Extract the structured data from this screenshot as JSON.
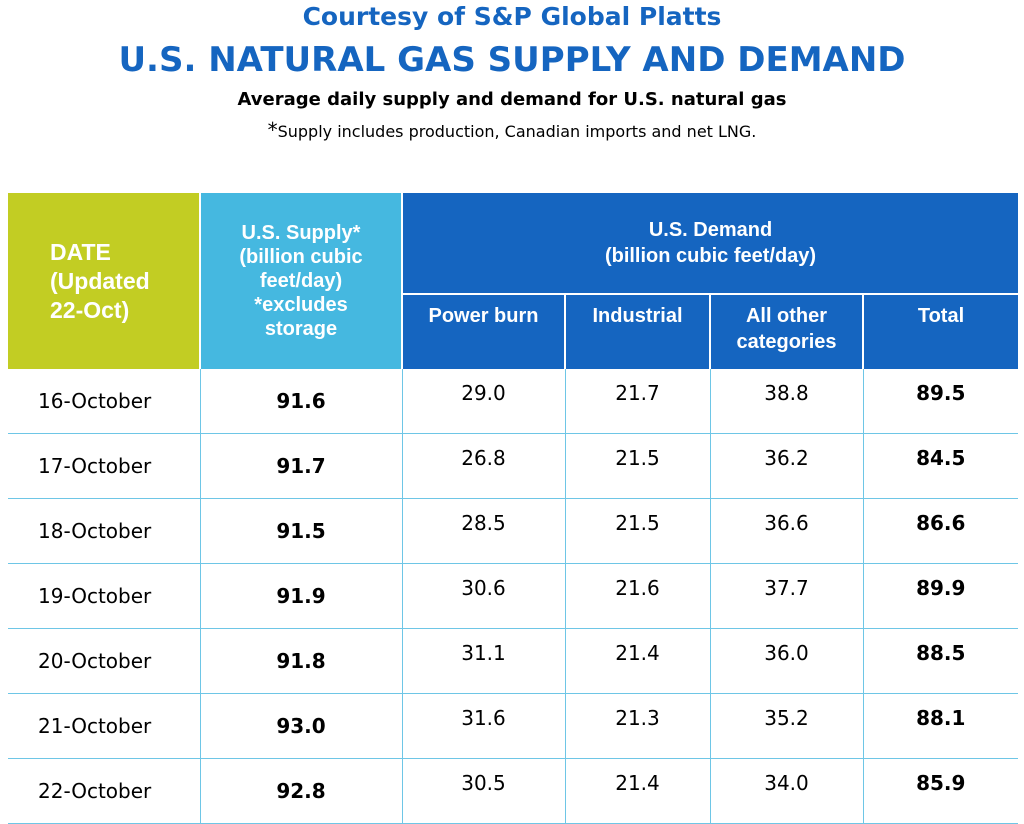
{
  "header": {
    "courtesy": "Courtesy of S&P Global Platts",
    "title": "U.S. NATURAL GAS SUPPLY AND DEMAND",
    "subtitle": "Average daily supply and demand for U.S. natural gas",
    "note_star": "*",
    "note": "Supply includes production, Canadian imports and net LNG."
  },
  "columns": {
    "date_line1": "DATE",
    "date_line2": "(Updated",
    "date_line3": "22-Oct)",
    "supply_line1": "U.S. Supply*",
    "supply_line2": "(billion cubic",
    "supply_line3": "feet/day)",
    "supply_line4": "*excludes",
    "supply_line5": "storage",
    "demand_line1": "U.S. Demand",
    "demand_line2": "(billion cubic feet/day)",
    "power_burn": "Power burn",
    "industrial": "Industrial",
    "other_line1": "All other",
    "other_line2": "categories",
    "total": "Total"
  },
  "colors": {
    "date_header": "#c2cd23",
    "supply_header": "#45b8e0",
    "demand_header": "#1565c0",
    "title": "#1565c0",
    "row_rule": "#6ec6e6"
  },
  "chart_data": {
    "type": "table",
    "title": "U.S. NATURAL GAS SUPPLY AND DEMAND",
    "subtitle": "Average daily supply and demand for U.S. natural gas",
    "columns": [
      "DATE (Updated 22-Oct)",
      "U.S. Supply* (billion cubic feet/day) *excludes storage",
      "Power burn",
      "Industrial",
      "All other categories",
      "Total"
    ],
    "rows": [
      {
        "date": "16-October",
        "supply": "91.6",
        "power_burn": "29.0",
        "industrial": "21.7",
        "other": "38.8",
        "total": "89.5"
      },
      {
        "date": "17-October",
        "supply": "91.7",
        "power_burn": "26.8",
        "industrial": "21.5",
        "other": "36.2",
        "total": "84.5"
      },
      {
        "date": "18-October",
        "supply": "91.5",
        "power_burn": "28.5",
        "industrial": "21.5",
        "other": "36.6",
        "total": "86.6"
      },
      {
        "date": "19-October",
        "supply": "91.9",
        "power_burn": "30.6",
        "industrial": "21.6",
        "other": "37.7",
        "total": "89.9"
      },
      {
        "date": "20-October",
        "supply": "91.8",
        "power_burn": "31.1",
        "industrial": "21.4",
        "other": "36.0",
        "total": "88.5"
      },
      {
        "date": "21-October",
        "supply": "93.0",
        "power_burn": "31.6",
        "industrial": "21.3",
        "other": "35.2",
        "total": "88.1"
      },
      {
        "date": "22-October",
        "supply": "92.8",
        "power_burn": "30.5",
        "industrial": "21.4",
        "other": "34.0",
        "total": "85.9"
      }
    ]
  }
}
